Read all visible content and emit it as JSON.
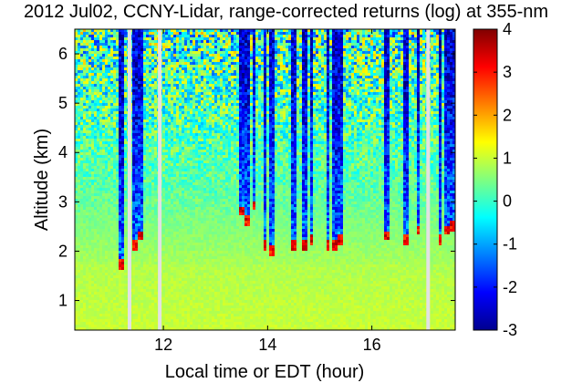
{
  "chart_data": {
    "type": "heatmap",
    "title": "2012 Jul02, CCNY-Lidar, range-corrected returns (log) at 355-nm",
    "xlabel": "Local time or EDT (hour)",
    "ylabel": "Altitude (km)",
    "xlim": [
      10.3,
      17.6
    ],
    "ylim": [
      0.4,
      6.5
    ],
    "x_ticks": [
      12,
      14,
      16
    ],
    "x_tick_labels": [
      "12",
      "14",
      "16"
    ],
    "y_ticks": [
      1,
      2,
      3,
      4,
      5,
      6
    ],
    "y_tick_labels": [
      "1",
      "2",
      "3",
      "4",
      "5",
      "6"
    ],
    "colorbar": {
      "min": -3,
      "max": 4,
      "ticks": [
        -3,
        -2,
        -1,
        0,
        1,
        2,
        3,
        4
      ],
      "tick_labels": [
        "-3",
        "-2",
        "-1",
        "0",
        "1",
        "2",
        "3",
        "4"
      ],
      "colormap": "jet"
    },
    "data_gaps_hours": [
      11.35,
      11.93,
      17.08
    ],
    "cloud_columns": [
      {
        "x": 11.2,
        "base_km": 1.7,
        "top_km": 6.5
      },
      {
        "x": 11.45,
        "base_km": 2.1,
        "top_km": 6.5
      },
      {
        "x": 11.55,
        "base_km": 2.3,
        "top_km": 6.5
      },
      {
        "x": 13.5,
        "base_km": 2.8,
        "top_km": 6.5
      },
      {
        "x": 13.6,
        "base_km": 2.6,
        "top_km": 6.5
      },
      {
        "x": 13.75,
        "base_km": 2.9,
        "top_km": 6.5
      },
      {
        "x": 13.95,
        "base_km": 2.1,
        "top_km": 6.5
      },
      {
        "x": 14.08,
        "base_km": 2.0,
        "top_km": 6.5
      },
      {
        "x": 14.5,
        "base_km": 2.1,
        "top_km": 6.5
      },
      {
        "x": 14.7,
        "base_km": 2.1,
        "top_km": 6.5
      },
      {
        "x": 14.85,
        "base_km": 2.2,
        "top_km": 6.5
      },
      {
        "x": 15.15,
        "base_km": 2.1,
        "top_km": 6.5
      },
      {
        "x": 15.3,
        "base_km": 2.1,
        "top_km": 6.5
      },
      {
        "x": 15.4,
        "base_km": 2.2,
        "top_km": 6.5
      },
      {
        "x": 16.3,
        "base_km": 2.3,
        "top_km": 6.5
      },
      {
        "x": 16.65,
        "base_km": 2.2,
        "top_km": 6.5
      },
      {
        "x": 16.9,
        "base_km": 2.4,
        "top_km": 6.5
      },
      {
        "x": 17.3,
        "base_km": 2.2,
        "top_km": 6.5
      },
      {
        "x": 17.45,
        "base_km": 2.4,
        "top_km": 6.5
      },
      {
        "x": 17.55,
        "base_km": 2.5,
        "top_km": 6.5
      }
    ]
  }
}
